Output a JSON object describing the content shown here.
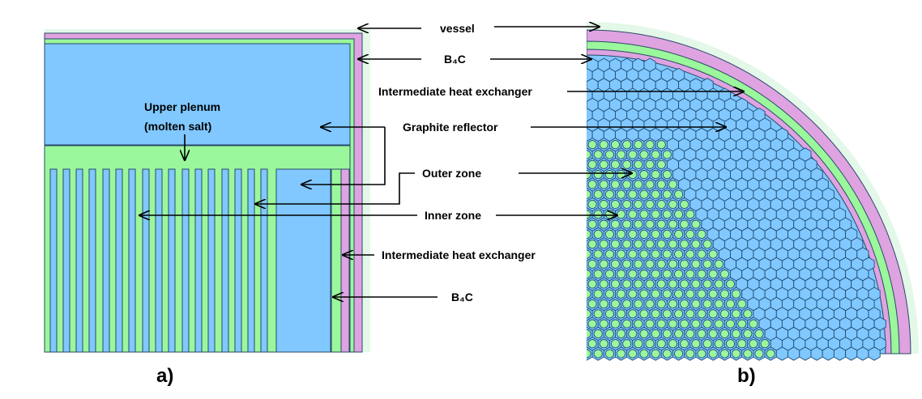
{
  "labels": {
    "vessel": "vessel",
    "b4c_top": "B₄C",
    "ihx_top": "Intermediate heat exchanger",
    "graphite_reflector": "Graphite reflector",
    "outer_zone": "Outer zone",
    "inner_zone": "Inner zone",
    "ihx_right": "Intermediate heat exchanger",
    "b4c_right": "B₄C",
    "upper_plenum_line1": "Upper plenum",
    "upper_plenum_line2": "(molten salt)",
    "panel_a": "a)",
    "panel_b": "b)"
  },
  "colors": {
    "salt_blue": "#80c8ff",
    "graphite_green": "#9bf79b",
    "b4c_pink": "#dea3e0",
    "vessel_mint": "#e3f8e8",
    "cell_outline": "#1f4e79",
    "dark_line": "#2a4a6a"
  }
}
